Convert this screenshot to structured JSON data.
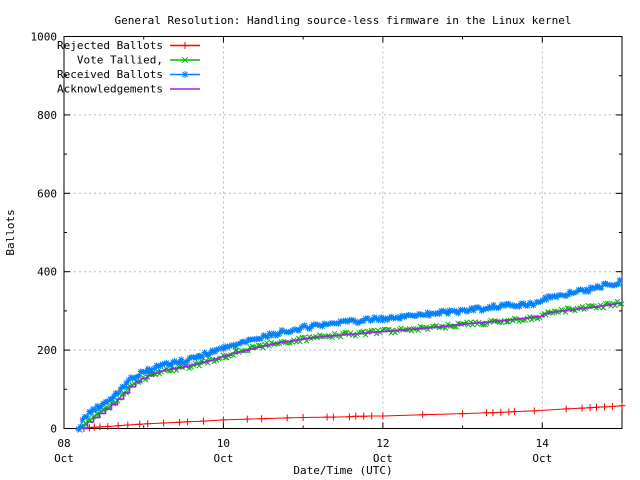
{
  "chart_data": {
    "type": "line",
    "title": "General Resolution: Handling source-less firmware in the Linux kernel",
    "xlabel": "Date/Time (UTC)",
    "ylabel": "Ballots",
    "ylim": [
      0,
      1000
    ],
    "xlim_days": [
      0,
      7
    ],
    "x_origin_label": "08 Oct",
    "grid": true,
    "grid_color": "#b8b8b8",
    "border_color": "#000000",
    "legend_position": "top-left-inside",
    "y_ticks": [
      0,
      200,
      400,
      600,
      800,
      1000
    ],
    "y_minor_step": 100,
    "grid_y_values": [
      200,
      400,
      600,
      800
    ],
    "grid_x_days": [
      2,
      4,
      6
    ],
    "x_major_ticks": [
      {
        "days": 0,
        "label_top": "08",
        "label_bottom": "Oct"
      },
      {
        "days": 2,
        "label_top": "10",
        "label_bottom": "Oct"
      },
      {
        "days": 4,
        "label_top": "12",
        "label_bottom": "Oct"
      },
      {
        "days": 6,
        "label_top": "14",
        "label_bottom": "Oct"
      }
    ],
    "x_minor_ticks_days": [
      1,
      3,
      5
    ],
    "series": [
      {
        "name": "Rejected Ballots",
        "color": "#ff0000",
        "marker": "plus",
        "dense": false,
        "x": [
          0.25,
          0.32,
          0.38,
          0.45,
          0.55,
          0.68,
          0.8,
          0.95,
          1.05,
          1.25,
          1.45,
          1.55,
          1.75,
          2.0,
          2.3,
          2.48,
          2.8,
          3.0,
          3.3,
          3.38,
          3.58,
          3.66,
          3.76,
          3.86,
          4.0,
          4.5,
          5.0,
          5.3,
          5.38,
          5.48,
          5.58,
          5.65,
          5.9,
          6.3,
          6.5,
          6.6,
          6.68,
          6.78,
          6.88,
          7.0
        ],
        "values": [
          0,
          2,
          3,
          4,
          5,
          7,
          9,
          11,
          12,
          14,
          16,
          17,
          19,
          22,
          24,
          25,
          27,
          28,
          29,
          29,
          30,
          31,
          31,
          32,
          32,
          35,
          38,
          40,
          40,
          41,
          42,
          43,
          45,
          50,
          52,
          53,
          54,
          55,
          56,
          58
        ]
      },
      {
        "name": "Vote Tallied,",
        "color": "#00bb00",
        "marker": "cross",
        "dense": true,
        "x": [
          0.2,
          0.26,
          0.32,
          0.4,
          0.48,
          0.56,
          0.64,
          0.72,
          0.8,
          0.88,
          0.96,
          1.05,
          1.15,
          1.25,
          1.35,
          1.5,
          1.65,
          1.8,
          1.95,
          2.1,
          2.25,
          2.4,
          2.55,
          2.7,
          2.85,
          3.0,
          3.25,
          3.5,
          3.75,
          4.0,
          4.25,
          4.5,
          4.75,
          5.0,
          5.25,
          5.5,
          5.75,
          5.95,
          6.05,
          6.2,
          6.4,
          6.6,
          6.8,
          7.0
        ],
        "values": [
          0,
          12,
          22,
          33,
          43,
          54,
          66,
          82,
          100,
          114,
          124,
          133,
          142,
          148,
          152,
          156,
          163,
          171,
          180,
          190,
          198,
          206,
          213,
          219,
          224,
          228,
          234,
          239,
          243,
          247,
          252,
          257,
          261,
          265,
          270,
          275,
          280,
          284,
          294,
          299,
          304,
          309,
          315,
          322
        ]
      },
      {
        "name": "Received Ballots",
        "color": "#0080ff",
        "marker": "asterisk",
        "dense": true,
        "x": [
          0.18,
          0.22,
          0.26,
          0.31,
          0.38,
          0.45,
          0.52,
          0.6,
          0.66,
          0.72,
          0.78,
          0.85,
          0.92,
          1.0,
          1.1,
          1.2,
          1.3,
          1.4,
          1.5,
          1.6,
          1.7,
          1.8,
          1.9,
          2.0,
          2.15,
          2.3,
          2.45,
          2.6,
          2.75,
          2.9,
          3.0,
          3.2,
          3.4,
          3.6,
          3.8,
          4.0,
          4.2,
          4.4,
          4.6,
          4.8,
          5.0,
          5.2,
          5.4,
          5.6,
          5.8,
          5.95,
          6.02,
          6.1,
          6.25,
          6.4,
          6.55,
          6.7,
          6.85,
          7.0
        ],
        "values": [
          0,
          14,
          28,
          40,
          48,
          55,
          64,
          75,
          86,
          100,
          115,
          128,
          137,
          143,
          152,
          160,
          166,
          170,
          172,
          178,
          184,
          191,
          198,
          204,
          214,
          222,
          231,
          240,
          247,
          253,
          257,
          263,
          268,
          272,
          276,
          281,
          285,
          289,
          293,
          296,
          299,
          305,
          311,
          315,
          317,
          319,
          330,
          336,
          341,
          346,
          352,
          360,
          368,
          376
        ]
      },
      {
        "name": "Acknowledgements",
        "color": "#a020f0",
        "marker": "none",
        "dense": false,
        "step": true,
        "x": [
          0.22,
          0.3,
          0.4,
          0.5,
          0.6,
          0.7,
          0.8,
          0.9,
          1.0,
          1.15,
          1.3,
          1.5,
          1.7,
          1.9,
          2.1,
          2.3,
          2.5,
          2.7,
          2.9,
          3.0,
          3.3,
          3.6,
          4.0,
          4.4,
          4.8,
          5.0,
          5.3,
          5.6,
          5.95,
          6.05,
          6.3,
          6.6,
          6.8,
          7.0
        ],
        "values": [
          0,
          18,
          32,
          46,
          62,
          80,
          103,
          119,
          130,
          144,
          152,
          158,
          168,
          179,
          192,
          201,
          212,
          220,
          226,
          230,
          236,
          241,
          248,
          254,
          262,
          267,
          272,
          278,
          286,
          296,
          302,
          309,
          315,
          322
        ]
      }
    ]
  }
}
